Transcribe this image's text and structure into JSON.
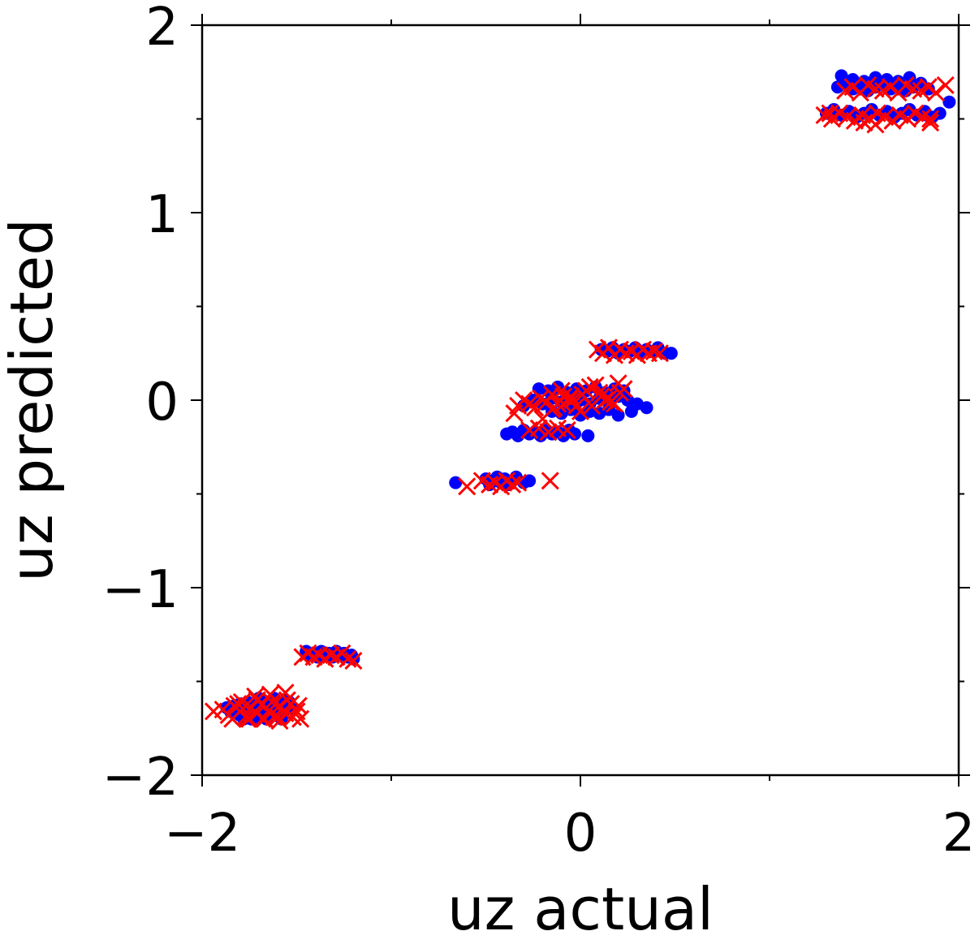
{
  "chart_data": {
    "type": "scatter",
    "title": "",
    "xlabel": "uz actual",
    "ylabel": "uz predicted",
    "xlim": [
      -2,
      2
    ],
    "ylim": [
      -2,
      2
    ],
    "grid": false,
    "x_major_ticks": [
      -2,
      0,
      2
    ],
    "x_minor_ticks": [
      -1,
      1
    ],
    "y_major_ticks": [
      -2,
      -1,
      0,
      1,
      2
    ],
    "y_minor_ticks": [
      -1.5,
      -0.5,
      0.5,
      1.5
    ],
    "x_tick_labels": [
      "−2",
      "0",
      "2"
    ],
    "y_tick_labels": [
      "−2",
      "−1",
      "0",
      "1",
      "2"
    ],
    "colors": {
      "series_dots": "#0000ff",
      "series_crosses": "#ff0000",
      "axes": "#000000"
    },
    "series": [
      {
        "marker": "circle",
        "color": "#0000ff",
        "x": [
          -1.87,
          -1.85,
          -1.83,
          -1.82,
          -1.8,
          -1.78,
          -1.77,
          -1.75,
          -1.74,
          -1.72,
          -1.7,
          -1.69,
          -1.67,
          -1.66,
          -1.64,
          -1.63,
          -1.61,
          -1.6,
          -1.58,
          -1.57,
          -1.55,
          -1.52,
          -1.8,
          -1.76,
          -1.72,
          -1.68,
          -1.65,
          -1.62,
          -1.59,
          -1.56,
          -1.78,
          -1.74,
          -1.7,
          -1.66,
          -1.62,
          -1.58,
          -1.54,
          -1.45,
          -1.43,
          -1.41,
          -1.39,
          -1.37,
          -1.35,
          -1.33,
          -1.31,
          -1.29,
          -1.27,
          -1.25,
          -1.23,
          -1.21,
          -1.2,
          -0.66,
          -0.5,
          -0.48,
          -0.46,
          -0.44,
          -0.42,
          -0.4,
          -0.38,
          -0.36,
          -0.34,
          -0.3,
          -0.27,
          -0.39,
          -0.36,
          -0.33,
          -0.3,
          -0.27,
          -0.24,
          -0.21,
          -0.18,
          -0.15,
          -0.12,
          -0.09,
          -0.06,
          -0.03,
          0.04,
          -0.3,
          -0.25,
          -0.2,
          -0.15,
          -0.1,
          -0.05,
          0.0,
          0.05,
          0.1,
          0.15,
          0.2,
          0.25,
          0.3,
          0.35,
          -0.22,
          -0.17,
          -0.12,
          -0.07,
          -0.02,
          0.03,
          0.08,
          0.13,
          0.18,
          0.23,
          -0.15,
          -0.1,
          -0.05,
          0.0,
          0.05,
          0.1,
          0.15,
          0.2,
          0.27,
          0.11,
          0.14,
          0.17,
          0.2,
          0.23,
          0.26,
          0.29,
          0.32,
          0.35,
          0.38,
          0.41,
          0.45,
          0.48,
          1.3,
          1.34,
          1.38,
          1.42,
          1.46,
          1.5,
          1.54,
          1.58,
          1.62,
          1.66,
          1.7,
          1.74,
          1.78,
          1.82,
          1.86,
          1.9,
          1.95,
          1.36,
          1.4,
          1.44,
          1.48,
          1.52,
          1.56,
          1.6,
          1.64,
          1.68,
          1.72,
          1.76,
          1.8,
          1.84,
          1.38,
          1.44,
          1.5,
          1.56,
          1.62,
          1.68,
          1.74,
          1.83
        ],
        "y": [
          -1.64,
          -1.66,
          -1.63,
          -1.65,
          -1.62,
          -1.67,
          -1.64,
          -1.66,
          -1.63,
          -1.65,
          -1.62,
          -1.67,
          -1.64,
          -1.66,
          -1.63,
          -1.65,
          -1.62,
          -1.67,
          -1.64,
          -1.66,
          -1.63,
          -1.65,
          -1.68,
          -1.61,
          -1.69,
          -1.6,
          -1.68,
          -1.61,
          -1.69,
          -1.6,
          -1.7,
          -1.7,
          -1.59,
          -1.7,
          -1.59,
          -1.7,
          -1.61,
          -1.34,
          -1.36,
          -1.35,
          -1.37,
          -1.34,
          -1.36,
          -1.35,
          -1.37,
          -1.34,
          -1.36,
          -1.35,
          -1.37,
          -1.36,
          -1.38,
          -0.44,
          -0.42,
          -0.45,
          -0.43,
          -0.41,
          -0.44,
          -0.42,
          -0.45,
          -0.43,
          -0.41,
          -0.44,
          -0.43,
          -0.18,
          -0.17,
          -0.19,
          -0.16,
          -0.18,
          -0.17,
          -0.19,
          -0.16,
          -0.18,
          -0.17,
          -0.19,
          -0.16,
          -0.18,
          -0.19,
          -0.03,
          0.0,
          -0.02,
          0.01,
          -0.01,
          0.02,
          0.0,
          -0.02,
          0.01,
          -0.01,
          0.02,
          0.0,
          -0.02,
          -0.04,
          0.06,
          0.05,
          0.07,
          0.04,
          0.06,
          0.05,
          0.07,
          0.04,
          0.06,
          0.05,
          -0.06,
          -0.07,
          -0.05,
          -0.08,
          -0.06,
          -0.07,
          -0.05,
          -0.08,
          -0.06,
          0.27,
          0.26,
          0.28,
          0.25,
          0.27,
          0.26,
          0.28,
          0.25,
          0.27,
          0.26,
          0.28,
          0.25,
          0.25,
          1.53,
          1.55,
          1.52,
          1.54,
          1.51,
          1.53,
          1.55,
          1.52,
          1.54,
          1.51,
          1.53,
          1.55,
          1.52,
          1.54,
          1.51,
          1.53,
          1.59,
          1.67,
          1.69,
          1.66,
          1.68,
          1.65,
          1.67,
          1.69,
          1.66,
          1.68,
          1.65,
          1.67,
          1.69,
          1.66,
          1.73,
          1.71,
          1.7,
          1.72,
          1.71,
          1.7,
          1.72,
          1.52
        ]
      },
      {
        "marker": "x",
        "color": "#ff0000",
        "x": [
          -1.94,
          -1.89,
          -1.86,
          -1.83,
          -1.8,
          -1.77,
          -1.74,
          -1.71,
          -1.68,
          -1.65,
          -1.62,
          -1.59,
          -1.56,
          -1.53,
          -1.5,
          -1.48,
          -1.84,
          -1.79,
          -1.75,
          -1.71,
          -1.67,
          -1.63,
          -1.59,
          -1.55,
          -1.81,
          -1.76,
          -1.72,
          -1.68,
          -1.64,
          -1.6,
          -1.56,
          -1.52,
          -1.49,
          -1.47,
          -1.44,
          -1.41,
          -1.38,
          -1.35,
          -1.32,
          -1.29,
          -1.26,
          -1.23,
          -1.2,
          -0.6,
          -0.52,
          -0.48,
          -0.45,
          -0.42,
          -0.39,
          -0.36,
          -0.33,
          -0.16,
          -0.35,
          -0.33,
          -0.3,
          -0.27,
          -0.24,
          -0.21,
          -0.18,
          -0.15,
          -0.12,
          -0.09,
          -0.06,
          -0.27,
          -0.22,
          -0.17,
          -0.12,
          -0.07,
          -0.02,
          0.03,
          0.08,
          0.13,
          0.18,
          0.23,
          -0.2,
          -0.15,
          -0.1,
          -0.05,
          0.0,
          0.05,
          0.1,
          0.15,
          0.2,
          -0.14,
          -0.09,
          -0.04,
          0.01,
          0.06,
          0.11,
          0.16,
          0.21,
          0.09,
          0.12,
          0.15,
          0.18,
          0.21,
          0.24,
          0.27,
          0.3,
          0.33,
          0.36,
          0.39,
          0.42,
          1.29,
          1.33,
          1.37,
          1.41,
          1.45,
          1.49,
          1.53,
          1.57,
          1.61,
          1.65,
          1.69,
          1.73,
          1.77,
          1.81,
          1.85,
          1.4,
          1.44,
          1.48,
          1.52,
          1.56,
          1.6,
          1.64,
          1.68,
          1.72,
          1.76,
          1.8,
          1.84,
          1.88,
          1.93,
          1.32,
          1.5,
          1.56,
          1.85
        ],
        "y": [
          -1.66,
          -1.65,
          -1.68,
          -1.63,
          -1.66,
          -1.69,
          -1.64,
          -1.67,
          -1.62,
          -1.66,
          -1.69,
          -1.63,
          -1.67,
          -1.62,
          -1.66,
          -1.7,
          -1.7,
          -1.61,
          -1.7,
          -1.6,
          -1.7,
          -1.61,
          -1.71,
          -1.6,
          -1.62,
          -1.7,
          -1.58,
          -1.7,
          -1.57,
          -1.69,
          -1.56,
          -1.69,
          -1.63,
          -1.37,
          -1.35,
          -1.37,
          -1.36,
          -1.38,
          -1.36,
          -1.37,
          -1.35,
          -1.38,
          -1.39,
          -0.46,
          -0.43,
          -0.45,
          -0.44,
          -0.46,
          -0.43,
          -0.45,
          -0.44,
          -0.43,
          -0.07,
          -0.03,
          0.0,
          -0.02,
          -0.04,
          0.01,
          -0.01,
          0.03,
          -0.02,
          0.02,
          0.0,
          -0.16,
          -0.15,
          -0.17,
          -0.15,
          -0.16,
          -0.03,
          0.05,
          0.08,
          0.0,
          -0.02,
          0.06,
          -0.1,
          -0.05,
          0.05,
          0.02,
          -0.06,
          0.07,
          0.04,
          0.01,
          0.09,
          -0.04,
          -0.02,
          0.0,
          0.03,
          -0.03,
          0.02,
          -0.01,
          0.04,
          0.27,
          0.25,
          0.28,
          0.24,
          0.27,
          0.25,
          0.26,
          0.24,
          0.27,
          0.25,
          0.26,
          0.25,
          1.52,
          1.5,
          1.53,
          1.51,
          1.49,
          1.52,
          1.5,
          1.53,
          1.51,
          1.49,
          1.52,
          1.5,
          1.53,
          1.51,
          1.5,
          1.65,
          1.67,
          1.64,
          1.68,
          1.66,
          1.65,
          1.67,
          1.64,
          1.68,
          1.66,
          1.65,
          1.67,
          1.64,
          1.68,
          1.53,
          1.48,
          1.47,
          1.48
        ]
      }
    ]
  }
}
